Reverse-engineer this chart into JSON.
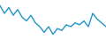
{
  "x": [
    0,
    1,
    2,
    3,
    4,
    5,
    6,
    7,
    8,
    9,
    10,
    11,
    12,
    13,
    14,
    15,
    16,
    17,
    18,
    19,
    20,
    21,
    22,
    23,
    24
  ],
  "y": [
    6,
    2,
    5,
    1,
    4,
    0,
    -2,
    1,
    -3,
    -5,
    -8,
    -5,
    -9,
    -6,
    -7,
    -4,
    -5,
    -3,
    -4,
    -2,
    -5,
    2,
    -1,
    -3,
    -5
  ],
  "line_color": "#2196c8",
  "linewidth": 1.0,
  "background_color": "#ffffff",
  "ylim": [
    -12,
    9
  ]
}
